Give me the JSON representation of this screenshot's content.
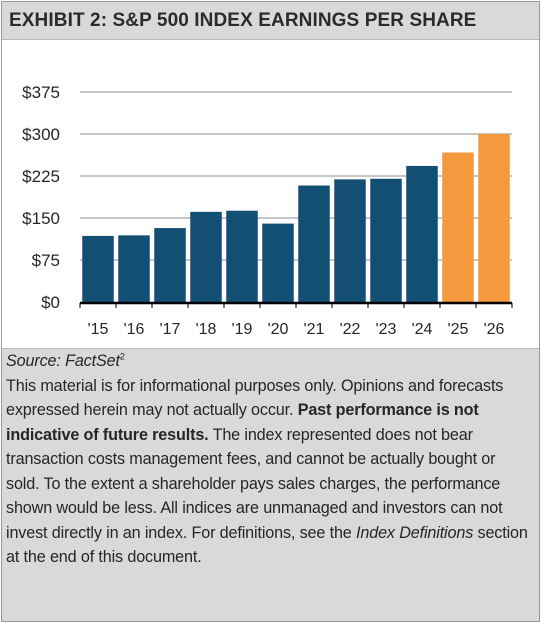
{
  "exhibit": {
    "title": "EXHIBIT 2: S&P 500 INDEX EARNINGS PER SHARE"
  },
  "chart_data": {
    "type": "bar",
    "categories": [
      "'15",
      "'16",
      "'17",
      "'18",
      "'19",
      "'20",
      "'21",
      "'22",
      "'23",
      "'24",
      "'25",
      "'26"
    ],
    "values": [
      118,
      119,
      132,
      161,
      163,
      140,
      208,
      219,
      220,
      243,
      267,
      300
    ],
    "ylim": [
      0,
      375
    ],
    "yticks": [
      0,
      75,
      150,
      225,
      300,
      375
    ],
    "ytick_labels": [
      "$0",
      "$75",
      "$150",
      "$225",
      "$300",
      "$375"
    ],
    "grid": true,
    "colors": {
      "actual": "#134f72",
      "forecast": "#f5993f",
      "axis": "#000000",
      "grid": "#8c8c8c"
    },
    "forecast_categories": [
      "'25",
      "'26"
    ]
  },
  "notes": {
    "source_label": "Source: FactSet",
    "source_superscript": "2",
    "disclaimer_intro": "This material is for informational purposes only. Opinions and forecasts expressed herein may not actually occur. ",
    "disclaimer_bold": "Past performance is not indicative of future results.",
    "disclaimer_middle": " The index represented does not bear transaction costs management fees, and cannot be actually bought or sold. To the extent a shareholder pays sales charges, the performance shown would be less. All indices are unmanaged and investors can not invest directly in an index. For definitions, see the ",
    "disclaimer_italic": "Index Definitions",
    "disclaimer_end": " section at the end of this document."
  }
}
